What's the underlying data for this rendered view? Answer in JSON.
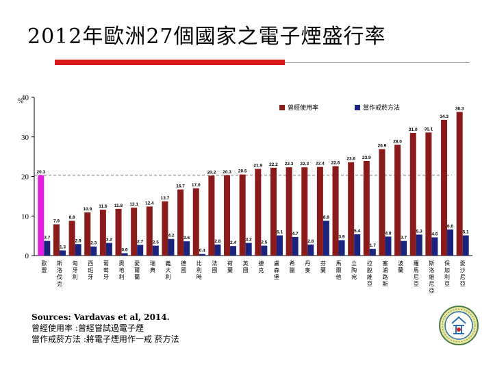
{
  "slide": {
    "title": "2012年歐洲27個國家之電子煙盛行率",
    "sources": "Sources: Vardavas et al, 2014.",
    "note1": "曾經使用率 :曾經嘗試過電子煙",
    "note2": "當作戒菸方法 :將電子煙用作一戒 菸方法"
  },
  "chart_data": {
    "type": "bar",
    "ylabel": "%",
    "ylim": [
      0,
      40
    ],
    "yticks": [
      0,
      10,
      20,
      30,
      40
    ],
    "dashed_line": 20.3,
    "legend_position": "top-right",
    "categories": [
      "歐盟",
      "斯洛伐克",
      "匈牙利",
      "西班牙",
      "葡萄牙",
      "奧地利",
      "愛爾蘭",
      "瑞典",
      "義大利",
      "德國",
      "比利時",
      "法國",
      "荷蘭",
      "英國",
      "捷克",
      "盧森堡",
      "希臘",
      "丹麥",
      "芬蘭",
      "馬爾他",
      "立陶宛",
      "拉脫維亞",
      "塞浦路斯",
      "波蘭",
      "羅馬尼亞",
      "斯洛維尼亞",
      "保加利亞",
      "愛沙尼亞"
    ],
    "series": [
      {
        "name": "曾經使用率",
        "color": "#8b1a1a",
        "values": [
          20.3,
          7.9,
          8.8,
          10.9,
          11.6,
          11.8,
          12.1,
          12.4,
          13.7,
          16.7,
          17.0,
          20.2,
          20.3,
          20.5,
          21.9,
          22.2,
          22.3,
          22.3,
          22.4,
          22.6,
          23.6,
          23.9,
          26.9,
          28.0,
          31.0,
          31.1,
          34.3,
          36.3
        ]
      },
      {
        "name": "當作戒菸方法",
        "color": "#1a237e",
        "values": [
          3.7,
          1.3,
          2.9,
          2.3,
          3.2,
          0.6,
          2.7,
          2.5,
          4.2,
          3.6,
          0.4,
          2.8,
          2.4,
          3.2,
          2.5,
          5.1,
          4.7,
          2.8,
          8.8,
          3.9,
          5.4,
          1.7,
          4.8,
          3.7,
          5.3,
          4.6,
          6.6,
          5.1
        ]
      }
    ]
  },
  "colors": {
    "ever": "#8b1a1a",
    "quit": "#1a237e",
    "eu_highlight": "#e020e0",
    "accent_red": "#d7191c"
  }
}
